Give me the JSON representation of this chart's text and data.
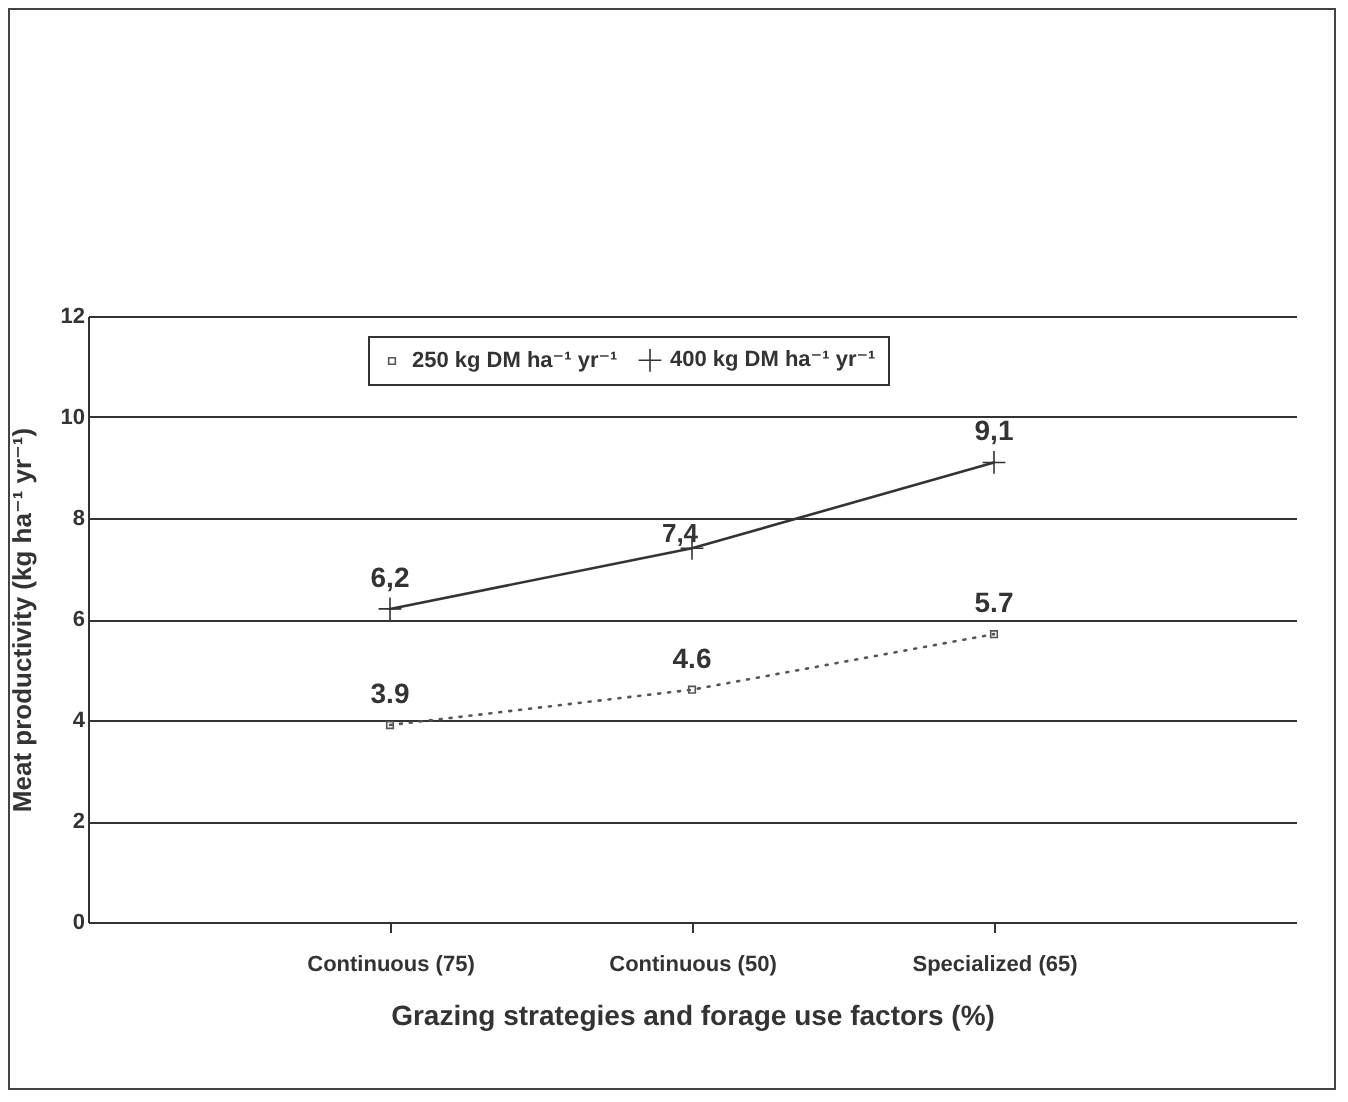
{
  "chart_data": {
    "type": "line",
    "xlabel": "Grazing strategies and forage use factors (%)",
    "ylabel": "Meat productivity (kg ha⁻¹ yr⁻¹)",
    "categories": [
      "Continuous (75)",
      "Continuous (50)",
      "Specialized (65)"
    ],
    "series": [
      {
        "name": "250 kg DM ha⁻¹ yr⁻¹",
        "color": "#555555",
        "values": [
          3.9,
          4.6,
          5.7
        ],
        "value_labels": [
          "3.9",
          "4.6",
          "5.7"
        ],
        "marker": "square",
        "line_style": "dotted"
      },
      {
        "name": "400 kg DM ha⁻¹ yr⁻¹",
        "color": "#333333",
        "values": [
          6.2,
          7.4,
          9.1
        ],
        "value_labels": [
          "6,2",
          "7,4",
          "9,1"
        ],
        "marker": "cross",
        "line_style": "solid"
      }
    ],
    "ylim": [
      0,
      12
    ],
    "yticks": [
      0,
      2,
      4,
      6,
      8,
      10,
      12
    ],
    "grid": "y",
    "legend": "top"
  }
}
